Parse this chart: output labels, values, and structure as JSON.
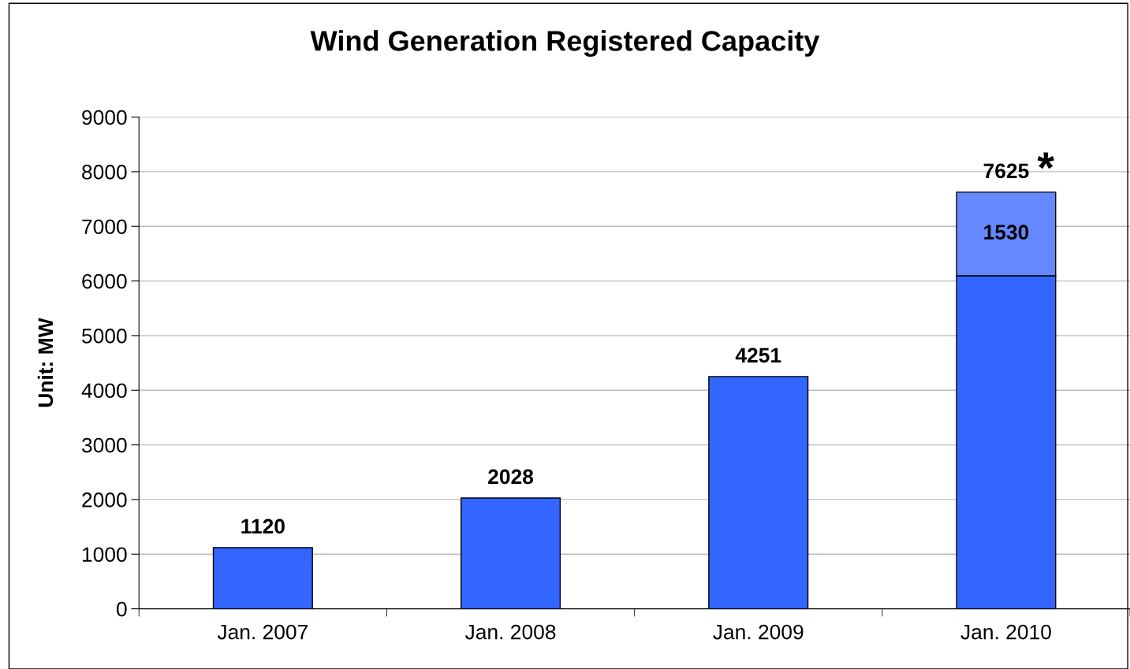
{
  "chart_data": {
    "type": "bar",
    "title": "Wind Generation Registered Capacity",
    "ylabel": "Unit: MW",
    "categories": [
      "Jan. 2007",
      "Jan. 2008",
      "Jan. 2009",
      "Jan. 2010"
    ],
    "stacked": true,
    "series": [
      {
        "color": "#3366ff",
        "values": [
          1120,
          2028,
          4251,
          6095
        ]
      },
      {
        "color": "#6688ff",
        "values": [
          null,
          null,
          null,
          1530
        ],
        "value_labels": [
          null,
          null,
          null,
          "1530"
        ]
      }
    ],
    "totals": [
      "1120",
      "2028",
      "4251",
      "7625"
    ],
    "annotations": [
      {
        "text": "*",
        "x": "Jan. 2010",
        "y": 7625
      }
    ],
    "ylim": [
      0,
      9000
    ],
    "yticks": [
      0,
      1000,
      2000,
      3000,
      4000,
      5000,
      6000,
      7000,
      8000,
      9000
    ],
    "grid": "y",
    "legend": false
  }
}
